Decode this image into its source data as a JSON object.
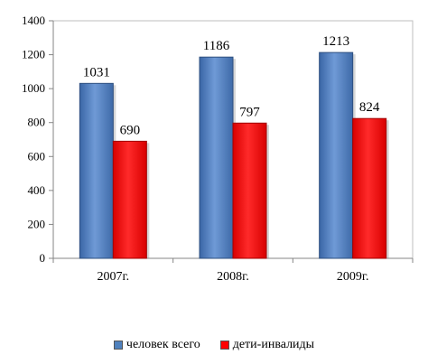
{
  "chart_data": {
    "type": "bar",
    "categories": [
      "2007г.",
      "2008г.",
      "2009г."
    ],
    "series": [
      {
        "name": "человек всего",
        "values": [
          1031,
          1186,
          1213
        ],
        "color": "#4F81BD"
      },
      {
        "name": "дети-инвалиды",
        "values": [
          690,
          797,
          824
        ],
        "color": "#FF0000"
      }
    ],
    "ylim": [
      0,
      1400
    ],
    "yticks": [
      0,
      200,
      400,
      600,
      800,
      1000,
      1200,
      1400
    ],
    "grid": false,
    "legend_position": "bottom",
    "title": "",
    "xlabel": "",
    "ylabel": ""
  }
}
